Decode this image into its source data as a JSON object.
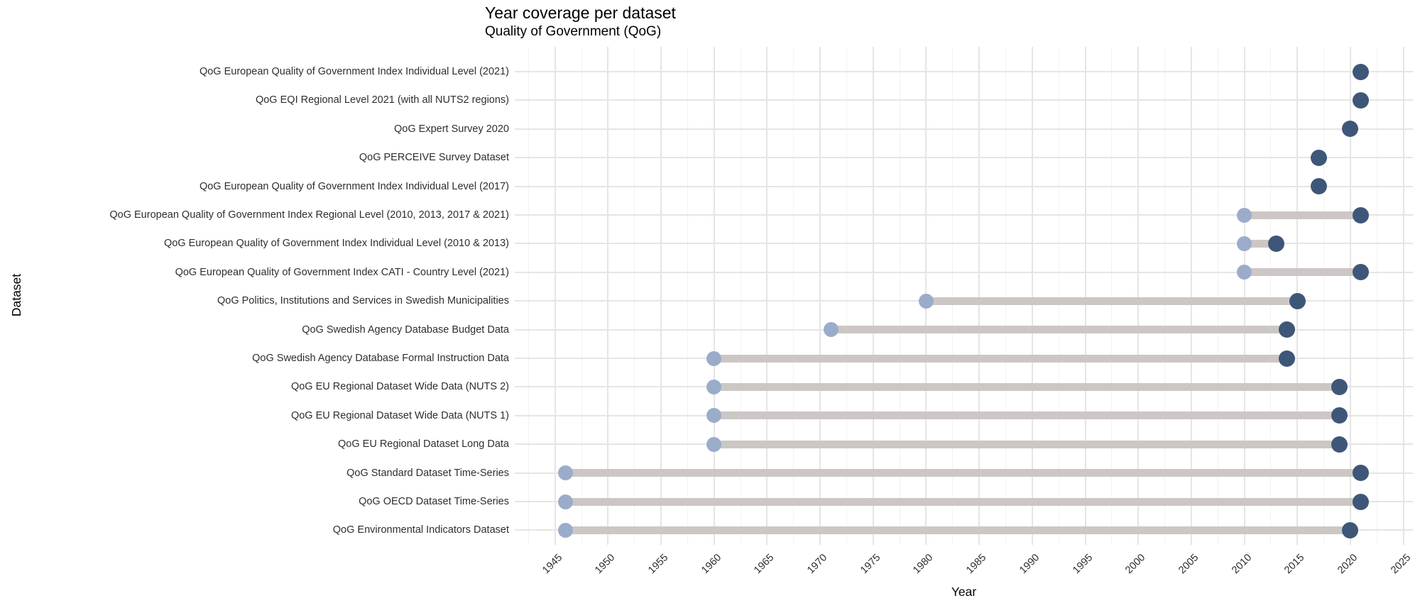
{
  "header": {
    "title": "Year coverage per dataset",
    "subtitle": "Quality of Government (QoG)"
  },
  "chart_data": {
    "type": "bar",
    "subtype": "dumbbell-range",
    "orientation": "horizontal",
    "title": "Year coverage per dataset",
    "subtitle": "Quality of Government (QoG)",
    "xlabel": "Year",
    "ylabel": "Dataset",
    "xlim": [
      1941.2,
      2025.9
    ],
    "x_major_ticks": [
      1945,
      1950,
      1955,
      1960,
      1965,
      1970,
      1975,
      1980,
      1985,
      1990,
      1995,
      2000,
      2005,
      2010,
      2015,
      2020,
      2025
    ],
    "x_minor_ticks": [
      1942.5,
      1947.5,
      1952.5,
      1957.5,
      1962.5,
      1967.5,
      1972.5,
      1977.5,
      1982.5,
      1987.5,
      1992.5,
      1997.5,
      2002.5,
      2007.5,
      2012.5,
      2017.5,
      2022.5
    ],
    "grid": true,
    "legend": false,
    "categories": [
      "QoG European Quality of Government Index Individual Level (2021)",
      "QoG EQI Regional Level 2021 (with all NUTS2 regions)",
      "QoG Expert Survey 2020",
      "QoG PERCEIVE Survey Dataset",
      "QoG European Quality of Government Index Individual Level (2017)",
      "QoG European Quality of Government Index Regional Level (2010, 2013, 2017 & 2021)",
      "QoG European Quality of Government Index Individual Level (2010 & 2013)",
      "QoG European Quality of Government Index CATI - Country Level (2021)",
      "QoG Politics, Institutions and Services in Swedish Municipalities",
      "QoG Swedish Agency Database Budget Data",
      "QoG Swedish Agency Database Formal Instruction Data",
      "QoG EU Regional Dataset Wide Data (NUTS 2)",
      "QoG EU Regional Dataset Wide Data (NUTS 1)",
      "QoG EU Regional Dataset Long Data",
      "QoG Standard Dataset Time-Series",
      "QoG OECD Dataset Time-Series",
      "QoG Environmental Indicators Dataset"
    ],
    "series": [
      {
        "name": "start_year",
        "values": [
          2021,
          2021,
          2020,
          2017,
          2017,
          2010,
          2010,
          2010,
          1980,
          1971,
          1960,
          1960,
          1960,
          1960,
          1946,
          1946,
          1946
        ]
      },
      {
        "name": "end_year",
        "values": [
          2021,
          2021,
          2020,
          2017,
          2017,
          2021,
          2013,
          2021,
          2015,
          2014,
          2014,
          2019,
          2019,
          2019,
          2021,
          2021,
          2020
        ]
      }
    ],
    "colors": {
      "start_dot": "#9bacca",
      "end_dot": "#3e5778",
      "bar": "#ccc7c5",
      "grid_major": "#e5e5e5",
      "grid_minor": "#f2f2f2",
      "text": "#2e2e2e",
      "background": "#ffffff"
    }
  }
}
